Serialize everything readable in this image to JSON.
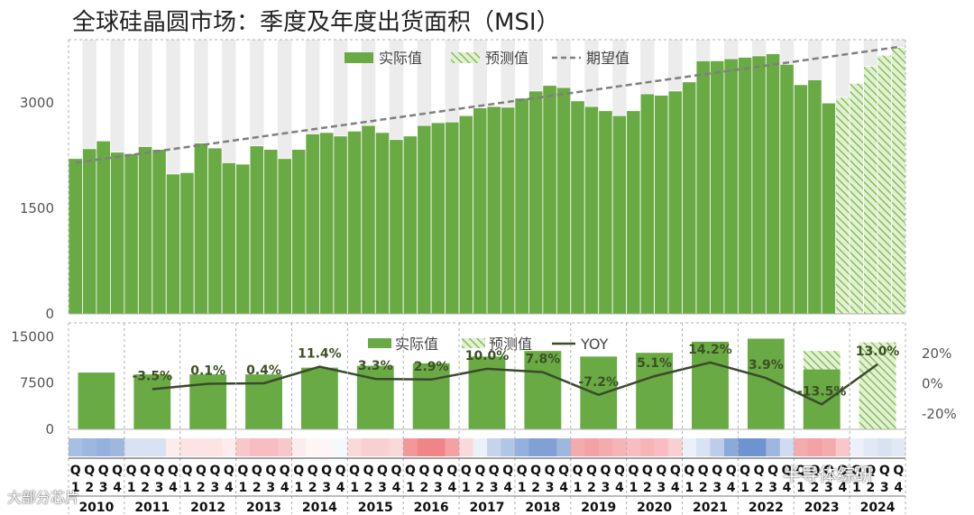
{
  "title": "全球硅晶圆市场：季度及年度出货面积（MSI）",
  "colors": {
    "bar": "#6aaa45",
    "bar_edge": "#ffffff",
    "forecast_fill": "#e3f0d3",
    "forecast_hatch": "#86bf5e",
    "trend": "#7f7f7f",
    "yoy_line": "#3a4a2c",
    "band": "#ececec",
    "grid": "#b0b0b0",
    "label_text": "#3d5025",
    "heat_red": "#e8434a",
    "heat_blue": "#3d6fbf"
  },
  "watermarks": {
    "right": "半导体综研",
    "left": "大部分芯片"
  },
  "chart_data": [
    {
      "id": "quarterly",
      "type": "bar",
      "legend": {
        "actual": "实际值",
        "forecast": "预测值",
        "trend": "期望值"
      },
      "ylim": [
        0,
        3900
      ],
      "yticks": [
        0,
        1500,
        3000
      ],
      "ytick_labels": [
        "0",
        "1500",
        "3000"
      ],
      "actual": [
        2210,
        2350,
        2460,
        2300,
        2280,
        2380,
        2340,
        1990,
        2010,
        2430,
        2360,
        2150,
        2130,
        2390,
        2340,
        2210,
        2340,
        2560,
        2580,
        2530,
        2600,
        2680,
        2580,
        2480,
        2530,
        2680,
        2720,
        2730,
        2820,
        2930,
        2950,
        2940,
        3070,
        3170,
        3250,
        3220,
        3030,
        2950,
        2890,
        2820,
        2890,
        3130,
        3110,
        3170,
        3300,
        3600,
        3600,
        3630,
        3650,
        3670,
        3700,
        3550,
        3260,
        3330,
        3000
      ],
      "forecast": [
        3080,
        3280,
        3520,
        3680,
        3790
      ],
      "trend": {
        "start": 2150,
        "end": 3800
      }
    },
    {
      "id": "annual",
      "type": "bar",
      "legend": {
        "actual": "实际值",
        "forecast": "预测值",
        "yoy": "YOY"
      },
      "ylim": [
        0,
        15500
      ],
      "yticks": [
        0,
        7500,
        15000
      ],
      "ytick_labels": [
        "0",
        "7500",
        "15000"
      ],
      "y2ticks": [
        20,
        0,
        -20
      ],
      "y2tick_labels": [
        "20%",
        "0%",
        "-20%"
      ],
      "y2lim": [
        -30,
        32
      ],
      "years": [
        "2010",
        "2011",
        "2012",
        "2013",
        "2014",
        "2015",
        "2016",
        "2017",
        "2018",
        "2019",
        "2020",
        "2021",
        "2022",
        "2023",
        "2024"
      ],
      "actual": [
        9200,
        8900,
        8900,
        8900,
        10000,
        10300,
        10700,
        11800,
        12700,
        11800,
        12400,
        14200,
        14700,
        9700,
        0
      ],
      "forecast": [
        0,
        0,
        0,
        0,
        0,
        0,
        0,
        0,
        0,
        0,
        0,
        0,
        0,
        12700,
        14100
      ],
      "yoy": [
        null,
        -3.5,
        0.1,
        0.4,
        11.4,
        3.3,
        2.9,
        10.0,
        7.8,
        -7.2,
        5.1,
        14.2,
        3.9,
        -13.5,
        13.0
      ],
      "yoy_labels": [
        "",
        "-3.5%",
        "0.1%",
        "0.4%",
        "11.4%",
        "3.3%",
        "2.9%",
        "10.0%",
        "7.8%",
        "-7.2%",
        "5.1%",
        "14.2%",
        "3.9%",
        "-13.5%",
        "13.0%"
      ]
    }
  ],
  "heatstrip": [
    -0.45,
    -0.5,
    -0.55,
    -0.5,
    -0.2,
    -0.2,
    -0.2,
    0.1,
    0.15,
    0.15,
    0.15,
    0.1,
    0.3,
    0.35,
    0.35,
    0.3,
    0.1,
    0.05,
    0.05,
    -0.05,
    0.2,
    0.25,
    0.25,
    0.2,
    0.55,
    0.65,
    0.65,
    0.5,
    0.2,
    -0.1,
    -0.3,
    -0.4,
    -0.55,
    -0.65,
    -0.65,
    -0.5,
    0.45,
    0.5,
    0.45,
    0.4,
    0.35,
    0.4,
    0.35,
    0.25,
    -0.1,
    -0.2,
    -0.35,
    -0.6,
    -0.75,
    -0.75,
    -0.5,
    -0.25,
    0.45,
    0.5,
    0.45,
    0.3,
    -0.1,
    -0.15,
    -0.2,
    -0.15
  ],
  "quarter_labels": {
    "prefix": "Q",
    "numbers": [
      "1",
      "2",
      "3",
      "4"
    ]
  }
}
